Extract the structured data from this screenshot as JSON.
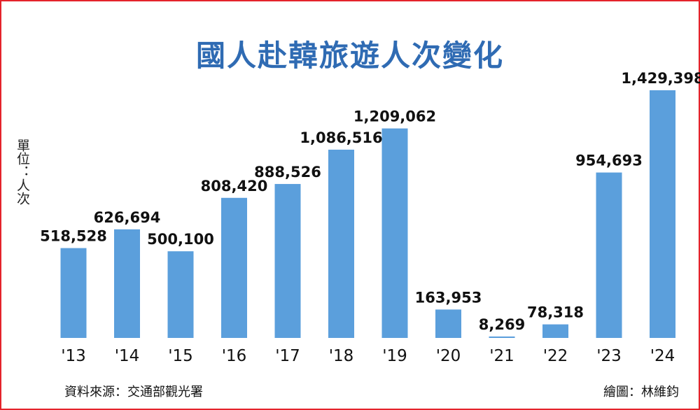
{
  "chart_data": {
    "type": "bar",
    "title": "國人赴韓旅遊人次變化",
    "ylabel": "單位：人次",
    "categories": [
      "'13",
      "'14",
      "'15",
      "'16",
      "'17",
      "'18",
      "'19",
      "'20",
      "'21",
      "'22",
      "'23",
      "'24"
    ],
    "values": [
      518528,
      626694,
      500100,
      808420,
      888526,
      1086516,
      1209062,
      163953,
      8269,
      78318,
      954693,
      1429398
    ],
    "data_labels": [
      "518,528",
      "626,694",
      "500,100",
      "808,420",
      "888,526",
      "1,086,516",
      "1,209,062",
      "163,953",
      "8,269",
      "78,318",
      "954,693",
      "1,429,398"
    ],
    "ylim": [
      0,
      1429398
    ],
    "grid": false,
    "bar_color": "#5b9fdc"
  },
  "footer": {
    "source": "資料來源：交通部觀光署",
    "credit": "繪圖：林維鈞"
  }
}
